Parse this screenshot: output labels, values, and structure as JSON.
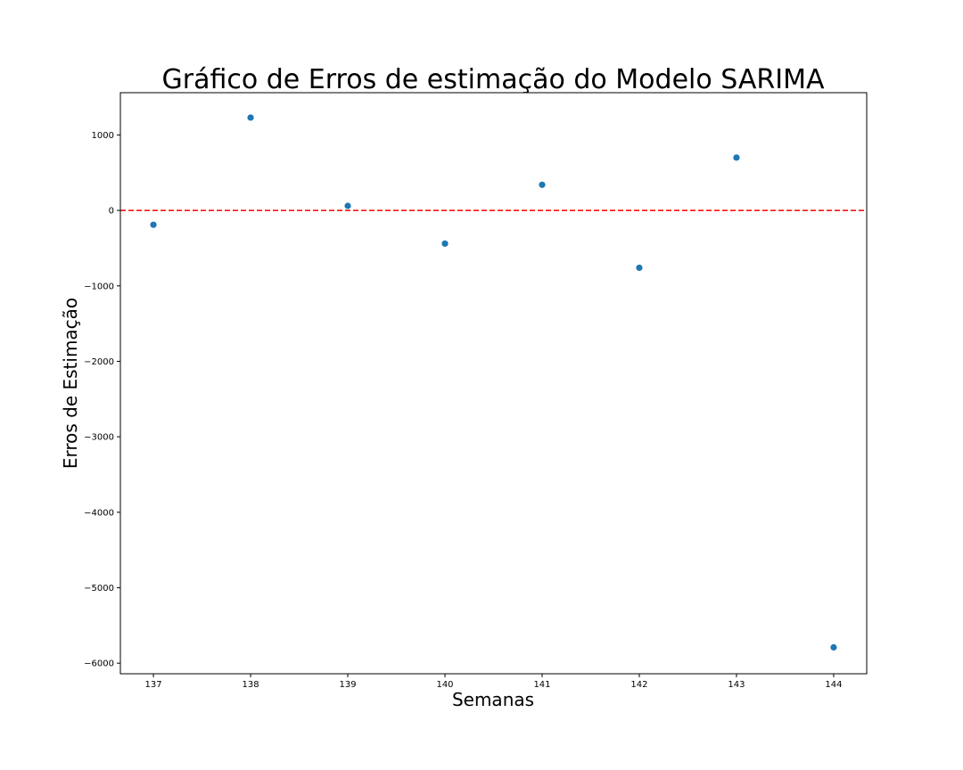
{
  "chart_data": {
    "type": "scatter",
    "title": "Gráfico de Erros de estimação do Modelo SARIMA",
    "xlabel": "Semanas",
    "ylabel": "Erros de Estimação",
    "x": [
      137,
      138,
      139,
      140,
      141,
      142,
      143,
      144
    ],
    "y": [
      -190,
      1230,
      60,
      -440,
      340,
      -760,
      700,
      -5790
    ],
    "xlim": [
      136.66,
      144.34
    ],
    "ylim": [
      -6140,
      1560
    ],
    "xticks": [
      137,
      138,
      139,
      140,
      141,
      142,
      143,
      144
    ],
    "xtick_labels": [
      "137",
      "138",
      "139",
      "140",
      "141",
      "142",
      "143",
      "144"
    ],
    "yticks": [
      1000,
      0,
      -1000,
      -2000,
      -3000,
      -4000,
      -5000,
      -6000
    ],
    "ytick_labels": [
      "1000",
      "0",
      "−1000",
      "−2000",
      "−3000",
      "−4000",
      "−5000",
      "−6000"
    ],
    "reference_line": {
      "y": 0,
      "style": "dashed",
      "color": "#ff0000"
    },
    "marker_color": "#1f77b4",
    "grid": false,
    "legend": "none"
  }
}
